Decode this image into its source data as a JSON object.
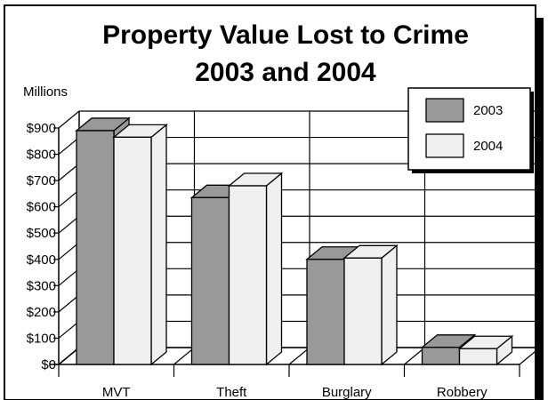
{
  "chart_data": {
    "type": "bar",
    "title_lines": [
      "Property Value Lost to Crime",
      "2003 and 2004"
    ],
    "ylabel": "Millions",
    "ylim": [
      0,
      900
    ],
    "yticks": [
      0,
      100,
      200,
      300,
      400,
      500,
      600,
      700,
      800,
      900
    ],
    "ytick_labels": [
      "$0",
      "$100",
      "$200",
      "$300",
      "$400",
      "$500",
      "$600",
      "$700",
      "$800",
      "$900"
    ],
    "categories": [
      "MVT",
      "Theft",
      "Burglary",
      "Robbery"
    ],
    "series": [
      {
        "name": "2003",
        "values": [
          890,
          635,
          400,
          65
        ],
        "color": "#999999"
      },
      {
        "name": "2004",
        "values": [
          865,
          680,
          405,
          60
        ],
        "color": "#f0f0f0"
      }
    ],
    "grid": true,
    "legend_position": "top-right",
    "style": "3d"
  }
}
